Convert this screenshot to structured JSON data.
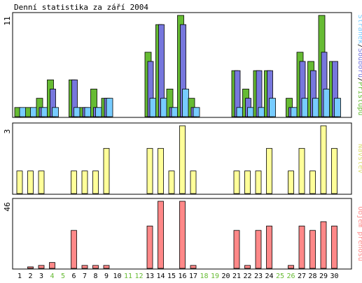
{
  "chart_data": {
    "type": "bar",
    "title": "Denní statistika za září 2004",
    "categories": [
      "1",
      "2",
      "3",
      "4",
      "5",
      "6",
      "7",
      "8",
      "9",
      "10",
      "11",
      "12",
      "13",
      "14",
      "15",
      "16",
      "17",
      "18",
      "19",
      "20",
      "21",
      "22",
      "23",
      "24",
      "25",
      "26",
      "27",
      "28",
      "29",
      "30"
    ],
    "weekend_days": [
      "4",
      "5",
      "11",
      "12",
      "18",
      "19",
      "25",
      "26"
    ],
    "colors": {
      "pristupu": "#66bb33",
      "souboru": "#7777dd",
      "stranek": "#77ccff",
      "navstev": "#ffff99",
      "objem": "#ff8888",
      "weekend_tick": "#66bb33",
      "weekday_tick": "#000000",
      "frame": "#000000"
    },
    "panels": [
      {
        "id": "traffic",
        "ymax_label": "11",
        "ymax": 11,
        "legend_parts": [
          {
            "text": "Stránek",
            "color": "#77ccff"
          },
          {
            "text": "/",
            "color": "#000000"
          },
          {
            "text": "Souborů",
            "color": "#7777dd"
          },
          {
            "text": "/",
            "color": "#000000"
          },
          {
            "text": "Přístupů",
            "color": "#66bb33"
          }
        ],
        "series": [
          {
            "name": "Přístupů",
            "key": "pristupu",
            "values": [
              1,
              1,
              2,
              4,
              0,
              4,
              1,
              3,
              2,
              0,
              0,
              0,
              7,
              10,
              3,
              11,
              2,
              0,
              0,
              0,
              5,
              3,
              5,
              5,
              0,
              2,
              7,
              6,
              11,
              6
            ]
          },
          {
            "name": "Souborů",
            "key": "souboru",
            "values": [
              0,
              0,
              1,
              3,
              0,
              4,
              1,
              1,
              2,
              0,
              0,
              0,
              6,
              10,
              1,
              10,
              1,
              0,
              0,
              0,
              5,
              2,
              5,
              5,
              0,
              1,
              6,
              5,
              7,
              6
            ]
          },
          {
            "name": "Stránek",
            "key": "stranek",
            "values": [
              1,
              1,
              1,
              1,
              0,
              1,
              1,
              1,
              2,
              0,
              0,
              0,
              2,
              2,
              1,
              3,
              1,
              0,
              0,
              0,
              1,
              1,
              1,
              2,
              0,
              1,
              2,
              2,
              3,
              2
            ]
          }
        ]
      },
      {
        "id": "visits",
        "ymax_label": "3",
        "ymax": 3,
        "legend_parts": [
          {
            "text": "Návštěv",
            "color": "#dddd77"
          }
        ],
        "series": [
          {
            "name": "Návštěv",
            "key": "navstev",
            "values": [
              1,
              1,
              1,
              0,
              0,
              1,
              1,
              1,
              2,
              0,
              0,
              0,
              2,
              2,
              1,
              3,
              1,
              0,
              0,
              0,
              1,
              1,
              1,
              2,
              0,
              1,
              2,
              1,
              3,
              2
            ]
          }
        ]
      },
      {
        "id": "volume",
        "ymax_label": "46",
        "ymax": 46,
        "legend_parts": [
          {
            "text": "Objem přenosu",
            "color": "#ff8888"
          }
        ],
        "series": [
          {
            "name": "Objem přenosu",
            "key": "objem",
            "values": [
              0,
              1,
              2,
              4,
              0,
              26,
              2,
              2,
              2,
              0,
              0,
              0,
              29,
              46,
              0,
              46,
              2,
              0,
              0,
              0,
              26,
              2,
              26,
              29,
              0,
              2,
              29,
              26,
              32,
              29
            ]
          }
        ]
      }
    ]
  }
}
